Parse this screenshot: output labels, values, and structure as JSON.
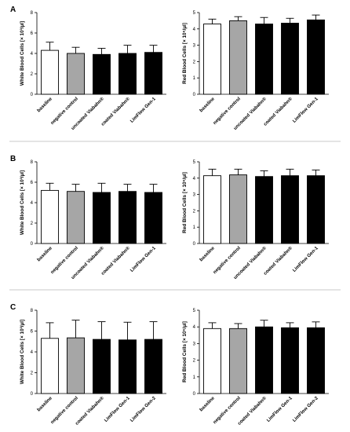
{
  "panels": [
    {
      "label": "A"
    },
    {
      "label": "B"
    },
    {
      "label": "C"
    }
  ],
  "colors": {
    "baseline": "#ffffff",
    "negative_control": "#a6a6a6",
    "treatment": "#000000",
    "separator": "#c8c8c8"
  },
  "chart_data": [
    {
      "type": "bar",
      "panel": "A",
      "position": "left",
      "ylabel": "White Blood Cells [× 10³/µl]",
      "ylim": [
        0,
        8
      ],
      "yticks": [
        0,
        2,
        4,
        6,
        8
      ],
      "categories": [
        "baseline",
        "negative control",
        "uncoated Viabahn®",
        "coated Viabahn®",
        "LimFlow Gen-1"
      ],
      "values": [
        4.3,
        4.0,
        3.9,
        4.0,
        4.1
      ],
      "errors": [
        0.8,
        0.6,
        0.6,
        0.8,
        0.7
      ],
      "fills": [
        "baseline",
        "negative_control",
        "treatment",
        "treatment",
        "treatment"
      ]
    },
    {
      "type": "bar",
      "panel": "A",
      "position": "right",
      "ylabel": "Red Blood Cells [× 10⁶/µl]",
      "ylim": [
        0,
        5
      ],
      "yticks": [
        0,
        1,
        2,
        3,
        4,
        5
      ],
      "categories": [
        "baseline",
        "negative control",
        "uncoated Viabahn®",
        "coated Viabahn®",
        "LimFlow Gen-1"
      ],
      "values": [
        4.3,
        4.5,
        4.3,
        4.35,
        4.55
      ],
      "errors": [
        0.3,
        0.25,
        0.4,
        0.3,
        0.3
      ],
      "fills": [
        "baseline",
        "negative_control",
        "treatment",
        "treatment",
        "treatment"
      ]
    },
    {
      "type": "bar",
      "panel": "B",
      "position": "left",
      "ylabel": "White Blood Cells [× 10³/µl]",
      "ylim": [
        0,
        8
      ],
      "yticks": [
        0,
        2,
        4,
        6,
        8
      ],
      "categories": [
        "baseline",
        "negative control",
        "uncoated Viabahn®",
        "coated Viabahn®",
        "LimFlow Gen-1"
      ],
      "values": [
        5.2,
        5.1,
        5.0,
        5.1,
        5.0
      ],
      "errors": [
        0.7,
        0.7,
        0.9,
        0.7,
        0.8
      ],
      "fills": [
        "baseline",
        "negative_control",
        "treatment",
        "treatment",
        "treatment"
      ]
    },
    {
      "type": "bar",
      "panel": "B",
      "position": "right",
      "ylabel": "Red Blood Cells [× 10⁶/µl]",
      "ylim": [
        0,
        5
      ],
      "yticks": [
        0,
        1,
        2,
        3,
        4,
        5
      ],
      "categories": [
        "baseline",
        "negative control",
        "uncoated Viabahn®",
        "coated Viabahn®",
        "LimFlow Gen-1"
      ],
      "values": [
        4.15,
        4.2,
        4.1,
        4.15,
        4.15
      ],
      "errors": [
        0.4,
        0.35,
        0.35,
        0.4,
        0.35
      ],
      "fills": [
        "baseline",
        "negative_control",
        "treatment",
        "treatment",
        "treatment"
      ]
    },
    {
      "type": "bar",
      "panel": "C",
      "position": "left",
      "ylabel": "White Blood Cells [× 10³/µl]",
      "ylim": [
        0,
        8
      ],
      "yticks": [
        0,
        2,
        4,
        6,
        8
      ],
      "categories": [
        "baseline",
        "negative control",
        "coated Viabahn®",
        "LimFlow Gen-1",
        "LimFlow Gen-2"
      ],
      "values": [
        5.3,
        5.35,
        5.2,
        5.15,
        5.2
      ],
      "errors": [
        1.5,
        1.7,
        1.7,
        1.7,
        1.7
      ],
      "fills": [
        "baseline",
        "negative_control",
        "treatment",
        "treatment",
        "treatment"
      ]
    },
    {
      "type": "bar",
      "panel": "C",
      "position": "right",
      "ylabel": "Red Blood Cells [× 10⁶/µl]",
      "ylim": [
        0,
        5
      ],
      "yticks": [
        0,
        1,
        2,
        3,
        4,
        5
      ],
      "categories": [
        "baseline",
        "negative control",
        "coated Viabahn®",
        "LimFlow Gen-1",
        "LimFlow Gen-2"
      ],
      "values": [
        3.9,
        3.9,
        4.0,
        3.95,
        3.95
      ],
      "errors": [
        0.35,
        0.3,
        0.4,
        0.3,
        0.35
      ],
      "fills": [
        "baseline",
        "negative_control",
        "treatment",
        "treatment",
        "treatment"
      ]
    }
  ]
}
